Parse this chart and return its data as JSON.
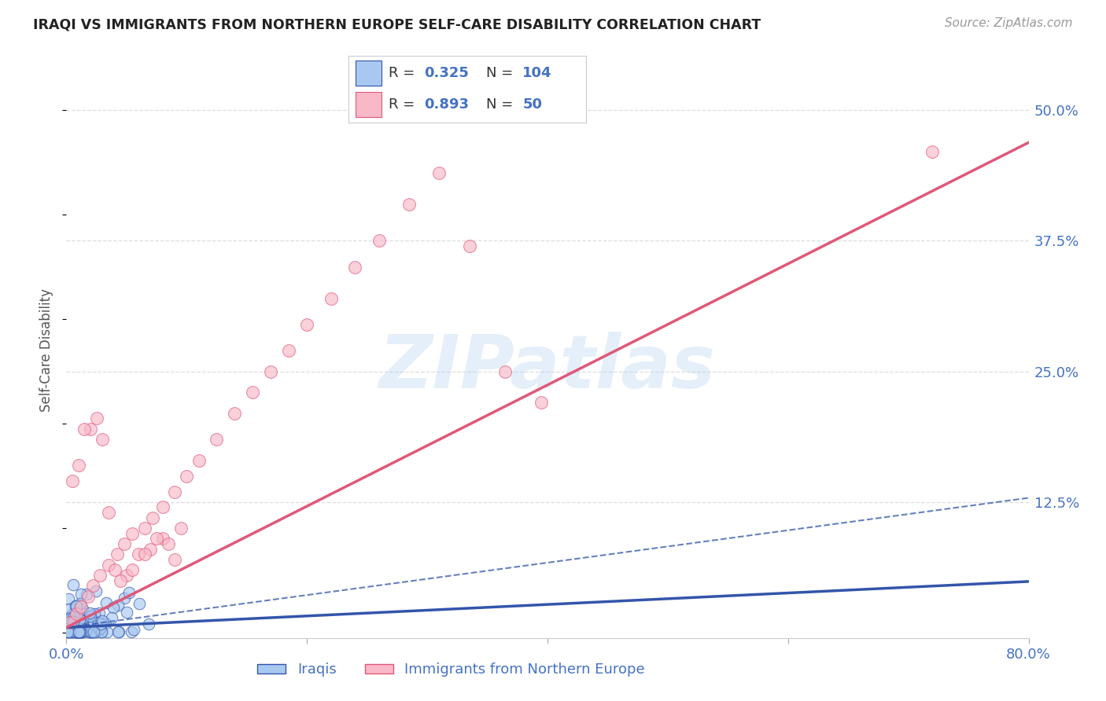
{
  "title": "IRAQI VS IMMIGRANTS FROM NORTHERN EUROPE SELF-CARE DISABILITY CORRELATION CHART",
  "source": "Source: ZipAtlas.com",
  "ylabel": "Self-Care Disability",
  "xlim": [
    0.0,
    0.8
  ],
  "ylim": [
    -0.005,
    0.545
  ],
  "xticks": [
    0.0,
    0.2,
    0.4,
    0.6,
    0.8
  ],
  "xticklabels": [
    "0.0%",
    "",
    "",
    "",
    "80.0%"
  ],
  "yticks_right": [
    0.0,
    0.125,
    0.25,
    0.375,
    0.5
  ],
  "yticklabels_right": [
    "",
    "12.5%",
    "25.0%",
    "37.5%",
    "50.0%"
  ],
  "watermark": "ZIPatlas",
  "blue_color": "#A8C8F0",
  "pink_color": "#F8B8C8",
  "blue_line_color": "#3355AA",
  "pink_line_color": "#E05878",
  "axis_label_color": "#4472C4",
  "grid_color": "#DDDDDD",
  "background_color": "#FFFFFF",
  "iraqis_R": 0.325,
  "iraqis_N": 104,
  "northern_europe_R": 0.893,
  "northern_europe_N": 50,
  "blue_line_slope": 0.055,
  "blue_line_intercept": 0.005,
  "blue_dash_slope": 0.155,
  "blue_dash_intercept": 0.005,
  "pink_line_slope": 0.58,
  "pink_line_intercept": 0.005,
  "ne_points_x": [
    0.003,
    0.008,
    0.012,
    0.018,
    0.022,
    0.028,
    0.035,
    0.042,
    0.048,
    0.055,
    0.065,
    0.072,
    0.08,
    0.09,
    0.1,
    0.11,
    0.125,
    0.14,
    0.155,
    0.17,
    0.185,
    0.2,
    0.22,
    0.24,
    0.26,
    0.285,
    0.31,
    0.335,
    0.365,
    0.395,
    0.005,
    0.01,
    0.02,
    0.03,
    0.04,
    0.05,
    0.06,
    0.07,
    0.08,
    0.09,
    0.015,
    0.025,
    0.035,
    0.045,
    0.055,
    0.065,
    0.075,
    0.085,
    0.095,
    0.72
  ],
  "ne_points_y": [
    0.01,
    0.018,
    0.025,
    0.035,
    0.045,
    0.055,
    0.065,
    0.075,
    0.085,
    0.095,
    0.1,
    0.11,
    0.12,
    0.135,
    0.15,
    0.165,
    0.185,
    0.21,
    0.23,
    0.25,
    0.27,
    0.295,
    0.32,
    0.35,
    0.375,
    0.41,
    0.44,
    0.37,
    0.25,
    0.22,
    0.145,
    0.16,
    0.195,
    0.185,
    0.06,
    0.055,
    0.075,
    0.08,
    0.09,
    0.07,
    0.195,
    0.205,
    0.115,
    0.05,
    0.06,
    0.075,
    0.09,
    0.085,
    0.1,
    0.46
  ]
}
